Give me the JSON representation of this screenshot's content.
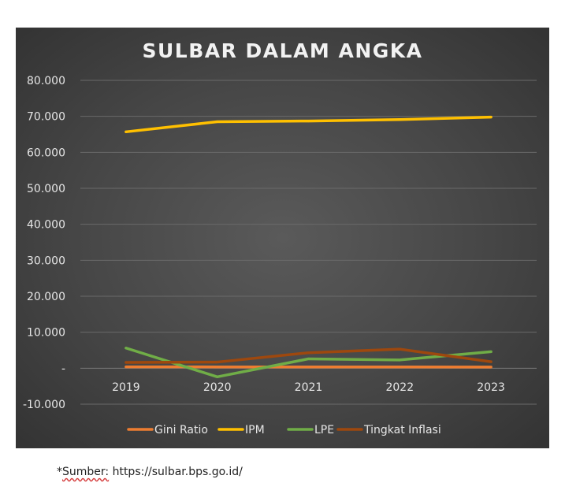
{
  "chart_data": {
    "type": "line",
    "title": "SULBAR DALAM ANGKA",
    "x": [
      "2019",
      "2020",
      "2021",
      "2022",
      "2023"
    ],
    "y_ticks": [
      {
        "value": 80,
        "label": "80.000"
      },
      {
        "value": 70,
        "label": "70.000"
      },
      {
        "value": 60,
        "label": "60.000"
      },
      {
        "value": 50,
        "label": "50.000"
      },
      {
        "value": 40,
        "label": "40.000"
      },
      {
        "value": 30,
        "label": "30.000"
      },
      {
        "value": 20,
        "label": "20.000"
      },
      {
        "value": 10,
        "label": "10.000"
      },
      {
        "value": 0,
        "label": "-"
      },
      {
        "value": -10,
        "label": "-10.000"
      }
    ],
    "ylim": [
      -10,
      80
    ],
    "grid": true,
    "legend_position": "bottom",
    "series": [
      {
        "name": "Gini Ratio",
        "color": "#ed7d31",
        "values": [
          0.37,
          0.36,
          0.36,
          0.35,
          0.33
        ]
      },
      {
        "name": "IPM",
        "color": "#ffc000",
        "values": [
          65.7,
          68.5,
          68.7,
          69.1,
          69.8
        ]
      },
      {
        "name": "LPE",
        "color": "#70ad47",
        "values": [
          5.6,
          -2.4,
          2.6,
          2.3,
          4.6
        ]
      },
      {
        "name": "Tingkat Inflasi",
        "color": "#9e480e",
        "values": [
          1.6,
          1.7,
          4.3,
          5.3,
          1.8
        ]
      }
    ]
  },
  "source_note": {
    "prefix": "*",
    "label": "Sumber:",
    "url": " https://sulbar.bps.go.id/"
  }
}
